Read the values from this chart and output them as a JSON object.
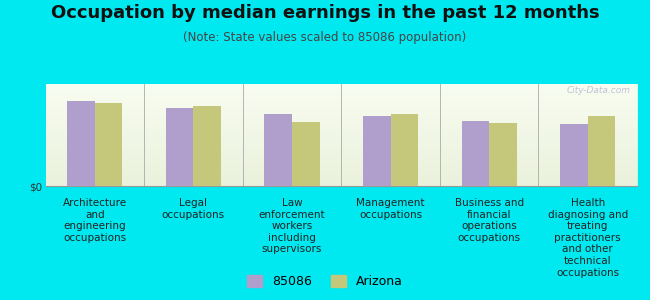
{
  "title": "Occupation by median earnings in the past 12 months",
  "subtitle": "(Note: State values scaled to 85086 population)",
  "categories": [
    "Architecture\nand\nengineering\noccupations",
    "Legal\noccupations",
    "Law\nenforcement\nworkers\nincluding\nsupervisors",
    "Management\noccupations",
    "Business and\nfinancial\noperations\noccupations",
    "Health\ndiagnosing and\ntreating\npractitioners\nand other\ntechnical\noccupations"
  ],
  "values_85086": [
    0.88,
    0.8,
    0.74,
    0.72,
    0.67,
    0.64
  ],
  "values_arizona": [
    0.85,
    0.82,
    0.66,
    0.74,
    0.65,
    0.72
  ],
  "color_85086": "#b09fcc",
  "color_arizona": "#c5c87a",
  "background_color": "#00e8f0",
  "plot_bg_gradient_top": "#e8f0d8",
  "plot_bg_gradient_bottom": "#f8fdf0",
  "ylabel": "$0",
  "legend_labels": [
    "85086",
    "Arizona"
  ],
  "bar_width": 0.28,
  "title_fontsize": 13,
  "subtitle_fontsize": 8.5,
  "tick_fontsize": 7.5,
  "legend_fontsize": 9,
  "watermark": "City-Data.com"
}
